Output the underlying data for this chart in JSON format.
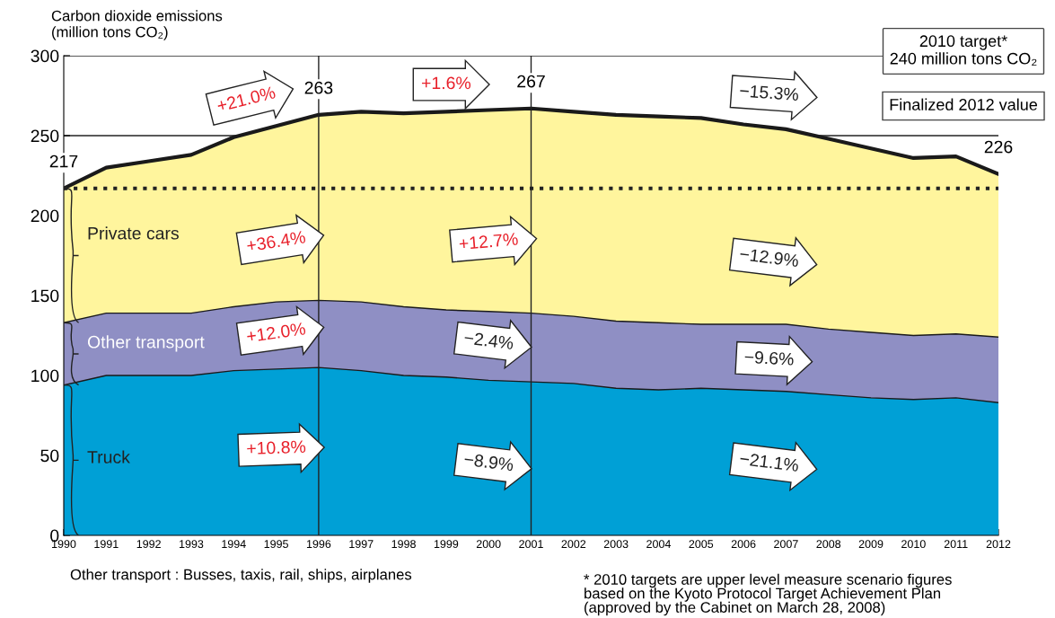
{
  "chart_data": {
    "type": "area",
    "ylabel": "Carbon dioxide emissions\n(million tons CO₂)",
    "x": [
      1990,
      1991,
      1992,
      1993,
      1994,
      1995,
      1996,
      1997,
      1998,
      1999,
      2000,
      2001,
      2002,
      2003,
      2004,
      2005,
      2006,
      2007,
      2008,
      2009,
      2010,
      2011,
      2012
    ],
    "xlim": [
      1990,
      2012
    ],
    "xticks": [
      1990,
      1991,
      1992,
      1993,
      1994,
      1995,
      1996,
      1997,
      1998,
      1999,
      2000,
      2001,
      2002,
      2003,
      2004,
      2005,
      2006,
      2007,
      2008,
      2009,
      2010,
      2011,
      2012
    ],
    "ylim": [
      0,
      300
    ],
    "yticks": [
      0,
      50,
      100,
      150,
      200,
      250,
      300
    ],
    "grid": "y",
    "series": [
      {
        "name": "Private cars",
        "color": "#fff59d",
        "values": [
          217,
          230,
          234,
          238,
          249,
          256,
          263,
          265,
          264,
          265,
          266,
          267,
          265,
          263,
          262,
          261,
          257,
          254,
          248,
          242,
          236,
          237,
          226
        ],
        "value_labels": [
          "217",
          null,
          null,
          null,
          null,
          null,
          "263",
          null,
          null,
          null,
          null,
          "267",
          null,
          null,
          null,
          null,
          null,
          null,
          null,
          null,
          null,
          null,
          "226"
        ]
      },
      {
        "name": "Other transport",
        "color": "#8f8fc4",
        "values": [
          133,
          139,
          139,
          139,
          143,
          146,
          147,
          146,
          143,
          141,
          140,
          139,
          137,
          134,
          133,
          132,
          132,
          132,
          129,
          127,
          125,
          126,
          124
        ]
      },
      {
        "name": "Truck",
        "color": "#00a0d6",
        "values": [
          94,
          100,
          100,
          100,
          103,
          104,
          105,
          103,
          100,
          99,
          97,
          96,
          95,
          92,
          91,
          92,
          91,
          90,
          88,
          86,
          85,
          86,
          83
        ]
      }
    ],
    "ref_lines": [
      {
        "axis": "y",
        "value": 217,
        "line_style": "dotted",
        "color": "#222222"
      },
      {
        "axis": "x",
        "value": 1996,
        "color": "#222222"
      },
      {
        "axis": "x",
        "value": 2001,
        "color": "#222222"
      }
    ],
    "annotations": [
      "+21.0%",
      "+1.6%",
      "−15.3%",
      "+36.4%",
      "+12.7%",
      "−12.9%",
      "+12.0%",
      "−2.4%",
      "−9.6%",
      "+10.8%",
      "−8.9%",
      "−21.1%",
      "2010 target*\n240 million tons CO₂",
      "Finalized 2012 value",
      "Other transport : Busses, taxis, rail, ships, airplanes",
      "* 2010 targets are upper level measure scenario figures\nbased on the Kyoto Protocol Target Achievement Plan\n(approved by the Cabinet on March 28, 2008)"
    ]
  }
}
